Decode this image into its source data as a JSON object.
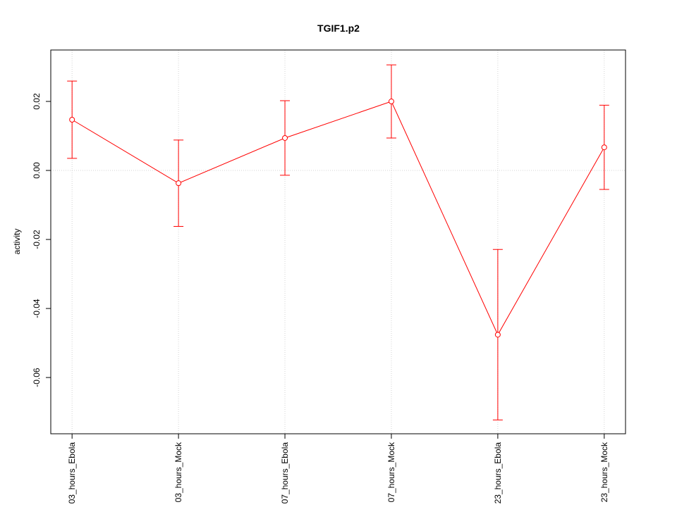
{
  "chart_data": {
    "type": "line",
    "title": "TGIF1.p2",
    "y_label": "activity",
    "categories": [
      "03_hours_Ebola",
      "03_hours_Mock",
      "07_hours_Ebola",
      "07_hours_Mock",
      "23_hours_Ebola",
      "23_hours_Mock"
    ],
    "series": [
      {
        "color": "#ff0000",
        "values": [
          0.0147,
          -0.0037,
          0.0094,
          0.02,
          -0.0476,
          0.0067
        ],
        "errors": [
          0.0112,
          0.0125,
          0.0108,
          0.0106,
          0.0247,
          0.0122
        ]
      }
    ],
    "ylim": [
      -0.0763,
      0.0349
    ],
    "yticks": [
      -0.06,
      -0.04,
      -0.02,
      {
        "value": 0,
        "label": "0.00"
      },
      0.02
    ],
    "reference_line": 0,
    "grid": true
  }
}
